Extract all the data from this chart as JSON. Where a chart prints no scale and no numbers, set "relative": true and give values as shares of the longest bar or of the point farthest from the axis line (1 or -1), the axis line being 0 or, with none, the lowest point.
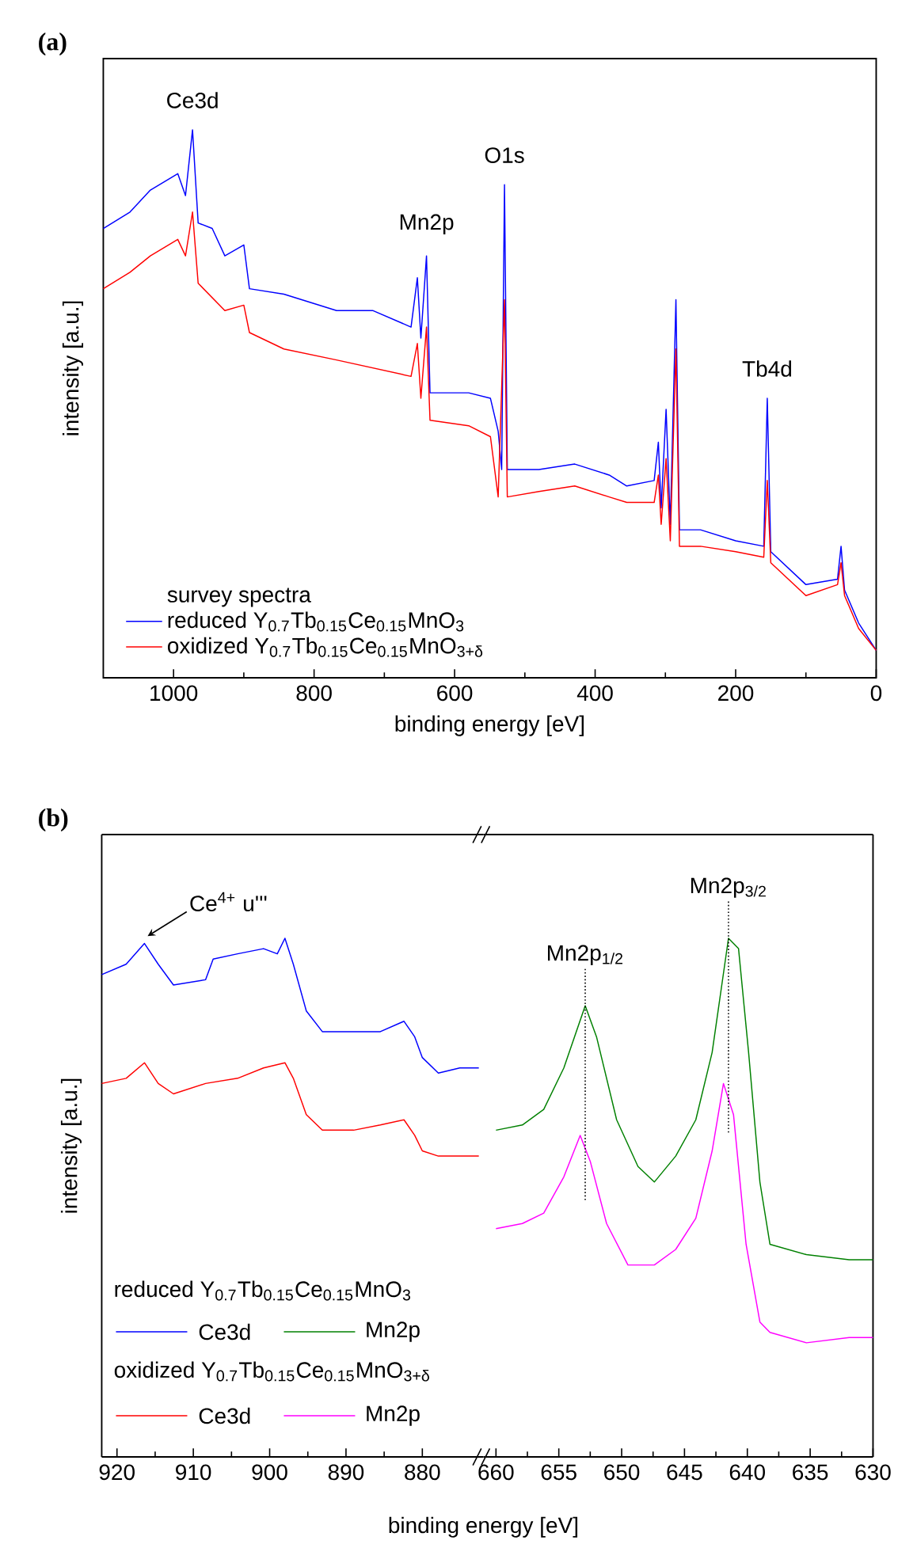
{
  "chart_data": [
    {
      "type": "line",
      "title": "(a)",
      "xlabel": "binding energy [eV]",
      "ylabel": "intensity [a.u.]",
      "relative": true,
      "xlim": [
        1100,
        0
      ],
      "xticks": [
        1000,
        800,
        600,
        400,
        200,
        0
      ],
      "legend": "bottom left",
      "legend_title": "survey spectra",
      "annotations": [
        {
          "text": "Ce3d",
          "x": 973,
          "y": 1.0
        },
        {
          "text": "Mn2p",
          "x": 640,
          "y": 0.77
        },
        {
          "text": "O1s",
          "x": 529,
          "y": 0.9
        },
        {
          "text": "Tb4d",
          "x": 155,
          "y": 0.51
        }
      ],
      "series": [
        {
          "name": "reduced Y$_{0.7}$Tb$_{0.15}$Ce$_{0.15}$MnO$_{3}$",
          "color": "#0000ff",
          "x": [
            1100,
            1062,
            1033,
            994,
            983,
            973,
            965,
            945,
            927,
            900,
            892,
            843,
            768,
            716,
            662,
            653,
            648,
            640,
            635,
            580,
            549,
            538,
            533,
            529,
            525,
            480,
            429,
            380,
            355,
            316,
            310,
            306,
            299,
            293,
            285,
            280,
            250,
            200,
            160,
            155,
            150,
            100,
            55,
            50,
            45,
            25,
            0
          ],
          "values": [
            0.82,
            0.85,
            0.89,
            0.92,
            0.88,
            1.0,
            0.83,
            0.82,
            0.77,
            0.79,
            0.71,
            0.7,
            0.67,
            0.67,
            0.64,
            0.73,
            0.62,
            0.77,
            0.52,
            0.52,
            0.51,
            0.45,
            0.38,
            0.9,
            0.38,
            0.38,
            0.39,
            0.37,
            0.35,
            0.36,
            0.43,
            0.31,
            0.49,
            0.28,
            0.69,
            0.27,
            0.27,
            0.25,
            0.24,
            0.51,
            0.23,
            0.17,
            0.18,
            0.24,
            0.16,
            0.1,
            0.05
          ]
        },
        {
          "name": "oxidized Y$_{0.7}$Tb$_{0.15}$Ce$_{0.15}$MnO$_{3+δ}$",
          "color": "#ff0000",
          "x": [
            1100,
            1062,
            1033,
            994,
            983,
            973,
            965,
            927,
            900,
            892,
            843,
            768,
            662,
            653,
            648,
            640,
            635,
            580,
            549,
            538,
            529,
            525,
            480,
            429,
            380,
            355,
            316,
            310,
            306,
            299,
            293,
            285,
            280,
            250,
            200,
            160,
            155,
            150,
            100,
            55,
            50,
            45,
            25,
            0
          ],
          "values": [
            0.71,
            0.74,
            0.77,
            0.8,
            0.77,
            0.85,
            0.72,
            0.67,
            0.68,
            0.63,
            0.6,
            0.58,
            0.55,
            0.61,
            0.51,
            0.64,
            0.47,
            0.46,
            0.44,
            0.33,
            0.69,
            0.33,
            0.34,
            0.35,
            0.33,
            0.32,
            0.32,
            0.37,
            0.28,
            0.4,
            0.25,
            0.6,
            0.24,
            0.24,
            0.23,
            0.22,
            0.36,
            0.21,
            0.15,
            0.17,
            0.21,
            0.15,
            0.09,
            0.05
          ]
        }
      ]
    },
    {
      "type": "line",
      "title": "(b)",
      "xlabel": "binding energy [eV]",
      "ylabel": "intensity [a.u.]",
      "relative": true,
      "xlim": [
        922,
        872
      ],
      "xticks": [
        920,
        910,
        900,
        890,
        880
      ],
      "legend": "bottom left",
      "annotations": [
        "reduced Y$_{0.7}$Tb$_{0.15}$Ce$_{0.15}$MnO$_{3}$",
        "oxidized Y$_{0.7}$Tb$_{0.15}$Ce$_{0.15}$MnO$_{3+δ}$",
        {
          "text": "Ce$^{4+}$ u'''",
          "x": 916.4,
          "y": 0.99
        }
      ],
      "series": [
        {
          "name": "Ce3d",
          "color": "#0000ff",
          "x": [
            922,
            918.8,
            916.4,
            914.6,
            912.6,
            908.4,
            907.4,
            904.2,
            900.8,
            899,
            898,
            896.9,
            895.2,
            893.1,
            889,
            885.5,
            882.4,
            881,
            880,
            877.9,
            875.1,
            872.6
          ],
          "values": [
            0.93,
            0.95,
            0.99,
            0.95,
            0.91,
            0.92,
            0.96,
            0.97,
            0.98,
            0.97,
            1.0,
            0.95,
            0.86,
            0.82,
            0.82,
            0.82,
            0.84,
            0.81,
            0.77,
            0.74,
            0.75,
            0.75
          ]
        },
        {
          "name": "Ce3d",
          "color": "#ff0000",
          "x": [
            922,
            918.8,
            916.4,
            914.6,
            912.6,
            908.4,
            904.2,
            900.8,
            898,
            896.9,
            895.2,
            893.1,
            889,
            885.5,
            882.4,
            881,
            880,
            877.9,
            872.6
          ],
          "values": [
            0.72,
            0.73,
            0.76,
            0.72,
            0.7,
            0.72,
            0.73,
            0.75,
            0.76,
            0.73,
            0.66,
            0.63,
            0.63,
            0.64,
            0.65,
            0.62,
            0.59,
            0.58,
            0.58
          ]
        }
      ]
    },
    {
      "type": "line",
      "relative": true,
      "xlim": [
        661,
        630
      ],
      "xticks": [
        660,
        655,
        650,
        645,
        640,
        635,
        630
      ],
      "legend": "bottom left",
      "annotations": [
        "Mn2p$_{1/2}$",
        "Mn2p$_{3/2}$"
      ],
      "series": [
        {
          "name": "Mn2p",
          "color": "#008000",
          "x": [
            660,
            657.9,
            656.2,
            654.6,
            652.9,
            652,
            650.4,
            648.7,
            647.4,
            645.7,
            644.1,
            642.8,
            641.5,
            640.7,
            639.9,
            639,
            638.2,
            635.3,
            631.9,
            630
          ],
          "values": [
            0.63,
            0.64,
            0.67,
            0.75,
            0.87,
            0.81,
            0.65,
            0.56,
            0.53,
            0.58,
            0.65,
            0.78,
            1.0,
            0.98,
            0.78,
            0.53,
            0.41,
            0.39,
            0.38,
            0.38
          ]
        },
        {
          "name": "Mn2p",
          "color": "#ff00ff",
          "x": [
            660,
            657.9,
            656.2,
            654.6,
            653.3,
            652.5,
            651.2,
            649.5,
            647.4,
            645.7,
            644.1,
            642.8,
            641.9,
            641.1,
            640.1,
            639,
            638.2,
            635.3,
            631.9,
            630
          ],
          "values": [
            0.44,
            0.45,
            0.47,
            0.54,
            0.62,
            0.57,
            0.45,
            0.37,
            0.37,
            0.4,
            0.46,
            0.59,
            0.72,
            0.66,
            0.41,
            0.26,
            0.24,
            0.22,
            0.23,
            0.23
          ]
        }
      ]
    }
  ]
}
